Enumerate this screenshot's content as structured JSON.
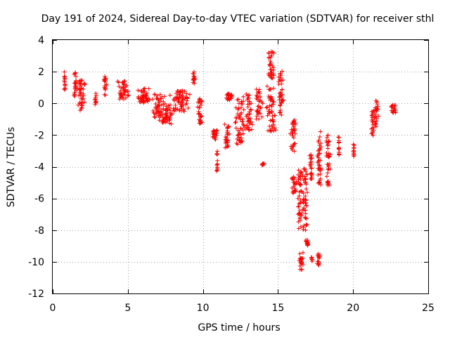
{
  "chart_data": {
    "type": "scatter",
    "title": "Day 191 of 2024, Sidereal Day-to-day VTEC variation (SDTVAR) for receiver sthl",
    "xlabel": "GPS time / hours",
    "ylabel": "SDTVAR / TECUs",
    "xlim": [
      0,
      25
    ],
    "ylim": [
      -12,
      4
    ],
    "xticks": [
      0,
      5,
      10,
      15,
      20,
      25
    ],
    "yticks": [
      -12,
      -10,
      -8,
      -6,
      -4,
      -2,
      0,
      2,
      4
    ],
    "grid": true,
    "marker": "plus",
    "color": "#ff0000",
    "series": [
      {
        "name": "SDTVAR",
        "clusters": [
          {
            "x0": 0.75,
            "x1": 0.85,
            "y0": 0.8,
            "y1": 2.0
          },
          {
            "x0": 1.4,
            "x1": 1.6,
            "y0": 0.4,
            "y1": 2.0
          },
          {
            "x0": 1.6,
            "x1": 2.2,
            "y0": -0.5,
            "y1": 1.5
          },
          {
            "x0": 2.8,
            "x1": 2.9,
            "y0": -0.1,
            "y1": 0.7
          },
          {
            "x0": 3.4,
            "x1": 3.6,
            "y0": 0.5,
            "y1": 1.7
          },
          {
            "x0": 4.3,
            "x1": 5.1,
            "y0": 0.2,
            "y1": 1.4
          },
          {
            "x0": 5.6,
            "x1": 6.5,
            "y0": 0.0,
            "y1": 1.0
          },
          {
            "x0": 6.6,
            "x1": 7.5,
            "y0": -0.9,
            "y1": 0.6
          },
          {
            "x0": 7.1,
            "x1": 8.0,
            "y0": -1.3,
            "y1": 0.0
          },
          {
            "x0": 7.8,
            "x1": 9.2,
            "y0": -0.5,
            "y1": 0.8
          },
          {
            "x0": 9.3,
            "x1": 9.5,
            "y0": 1.2,
            "y1": 2.0
          },
          {
            "x0": 9.6,
            "x1": 10.0,
            "y0": -1.3,
            "y1": 0.3
          },
          {
            "x0": 10.6,
            "x1": 11.0,
            "y0": -2.3,
            "y1": -1.7
          },
          {
            "x0": 10.9,
            "x1": 11.0,
            "y0": -4.3,
            "y1": -3.0
          },
          {
            "x0": 11.4,
            "x1": 11.8,
            "y0": -2.8,
            "y1": -1.3
          },
          {
            "x0": 11.5,
            "x1": 12.0,
            "y0": 0.2,
            "y1": 0.6
          },
          {
            "x0": 12.1,
            "x1": 12.8,
            "y0": -2.6,
            "y1": 0.5
          },
          {
            "x0": 12.8,
            "x1": 13.3,
            "y0": -1.7,
            "y1": 0.6
          },
          {
            "x0": 13.5,
            "x1": 14.0,
            "y0": -1.0,
            "y1": 0.9
          },
          {
            "x0": 13.9,
            "x1": 14.1,
            "y0": -3.9,
            "y1": -3.8
          },
          {
            "x0": 14.3,
            "x1": 14.8,
            "y0": 1.5,
            "y1": 3.3
          },
          {
            "x0": 14.2,
            "x1": 14.9,
            "y0": -1.8,
            "y1": 1.1
          },
          {
            "x0": 15.0,
            "x1": 15.4,
            "y0": -1.0,
            "y1": 2.1
          },
          {
            "x0": 15.8,
            "x1": 16.2,
            "y0": -3.2,
            "y1": -1.0
          },
          {
            "x0": 15.9,
            "x1": 16.3,
            "y0": -5.7,
            "y1": -4.6
          },
          {
            "x0": 16.3,
            "x1": 16.6,
            "y0": -8.0,
            "y1": -4.1
          },
          {
            "x0": 16.6,
            "x1": 17.0,
            "y0": -8.0,
            "y1": -4.1
          },
          {
            "x0": 16.4,
            "x1": 16.7,
            "y0": -10.5,
            "y1": -9.4
          },
          {
            "x0": 16.8,
            "x1": 17.1,
            "y0": -9.0,
            "y1": -8.6
          },
          {
            "x0": 17.1,
            "x1": 17.3,
            "y0": -4.8,
            "y1": -3.2
          },
          {
            "x0": 17.2,
            "x1": 17.3,
            "y0": -10.0,
            "y1": -9.7
          },
          {
            "x0": 17.6,
            "x1": 17.8,
            "y0": -10.3,
            "y1": -9.5
          },
          {
            "x0": 17.6,
            "x1": 17.9,
            "y0": -5.2,
            "y1": -1.7
          },
          {
            "x0": 18.2,
            "x1": 18.5,
            "y0": -5.3,
            "y1": -1.9
          },
          {
            "x0": 19.0,
            "x1": 19.1,
            "y0": -3.3,
            "y1": -2.1
          },
          {
            "x0": 20.0,
            "x1": 20.1,
            "y0": -3.4,
            "y1": -2.5
          },
          {
            "x0": 21.2,
            "x1": 21.4,
            "y0": -2.1,
            "y1": -0.4
          },
          {
            "x0": 21.4,
            "x1": 21.7,
            "y0": -1.5,
            "y1": 0.3
          },
          {
            "x0": 22.5,
            "x1": 22.9,
            "y0": -0.6,
            "y1": -0.1
          }
        ]
      }
    ]
  }
}
